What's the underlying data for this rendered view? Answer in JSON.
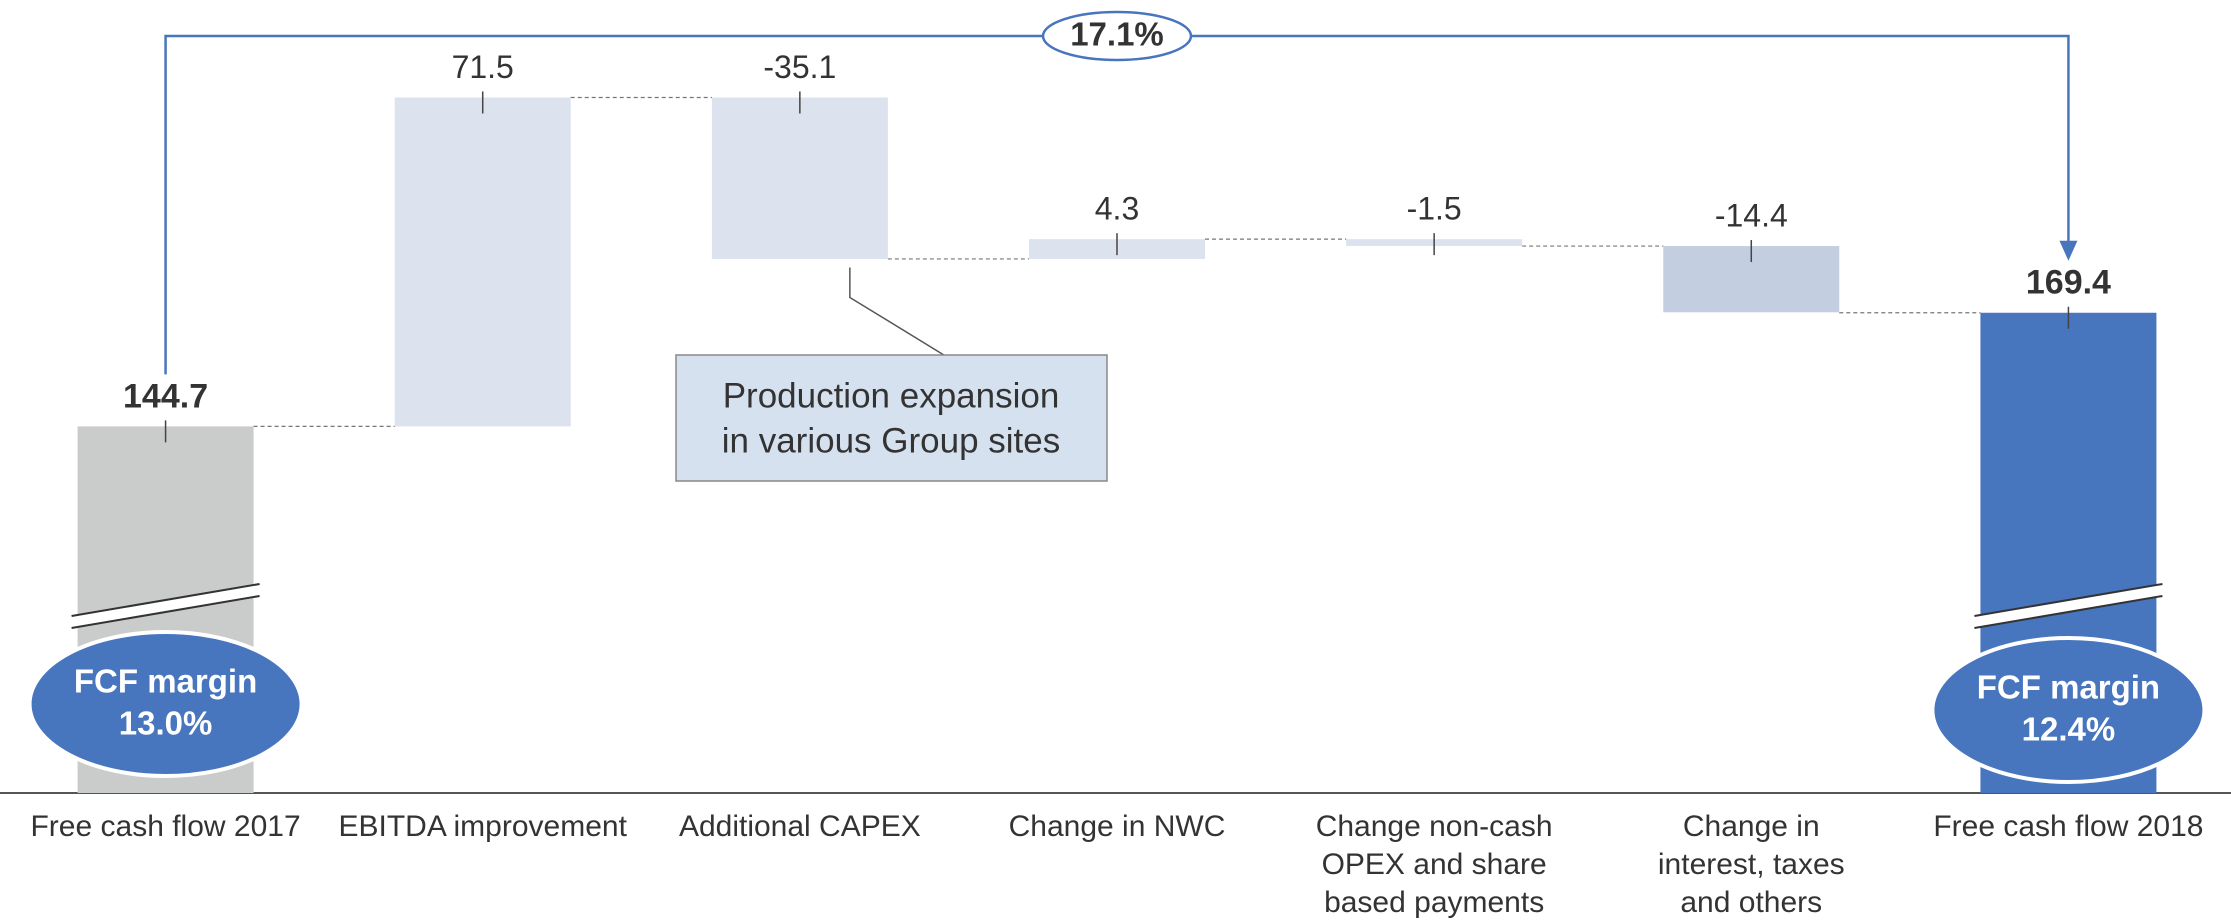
{
  "chart_data": {
    "type": "waterfall",
    "categories": [
      "Free cash flow 2017",
      "EBITDA improvement",
      "Additional CAPEX",
      "Change in NWC",
      "Change non-cash OPEX and share based payments",
      "Change in interest, taxes and others",
      "Free cash flow 2018"
    ],
    "values": [
      144.7,
      71.5,
      -35.1,
      4.3,
      -1.5,
      -14.4,
      169.4
    ],
    "measures": [
      "total",
      "relative",
      "relative",
      "relative",
      "relative",
      "relative",
      "total"
    ],
    "colors": [
      "#c9cccb",
      "#dce3ee",
      "#dce3ee",
      "#dce3ee",
      "#dce3ee",
      "#c3cfe1",
      "#4775be"
    ],
    "ylim": [
      65,
      230
    ],
    "growth_label": "17.1%",
    "margin_labels": [
      {
        "title": "FCF margin",
        "value": "13.0%"
      },
      {
        "title": "FCF margin",
        "value": "12.4%"
      }
    ],
    "callout": {
      "lines": [
        "Production expansion",
        "in various Group sites"
      ]
    }
  }
}
